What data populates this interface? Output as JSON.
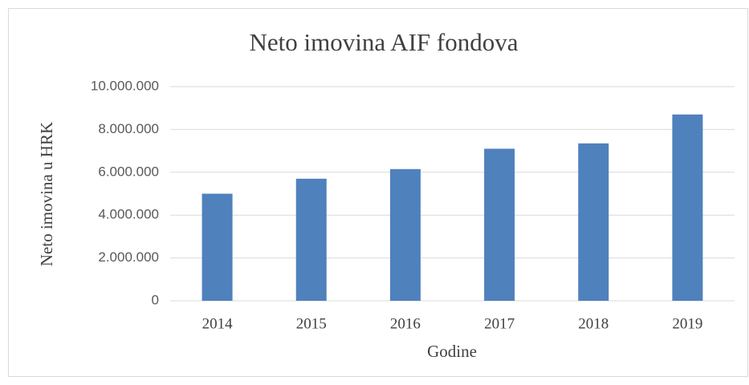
{
  "chart_data": {
    "type": "bar",
    "title": "Neto imovina AIF fondova",
    "x_label": "Godine",
    "y_label": "Neto imovina u HRK",
    "categories": [
      "2014",
      "2015",
      "2016",
      "2017",
      "2018",
      "2019"
    ],
    "values": [
      5000000,
      5700000,
      6150000,
      7100000,
      7350000,
      8700000
    ],
    "color": "#4f81bd",
    "ylim": [
      0,
      10000000
    ],
    "yticks": [
      0,
      {
        "value": 2000000,
        "label": "2.000.000"
      },
      {
        "value": 4000000,
        "label": "4.000.000"
      },
      {
        "value": 6000000,
        "label": "6.000.000"
      },
      {
        "value": 8000000,
        "label": "8.000.000"
      },
      {
        "value": 10000000,
        "label": "10.000.000"
      }
    ],
    "grid": true
  }
}
